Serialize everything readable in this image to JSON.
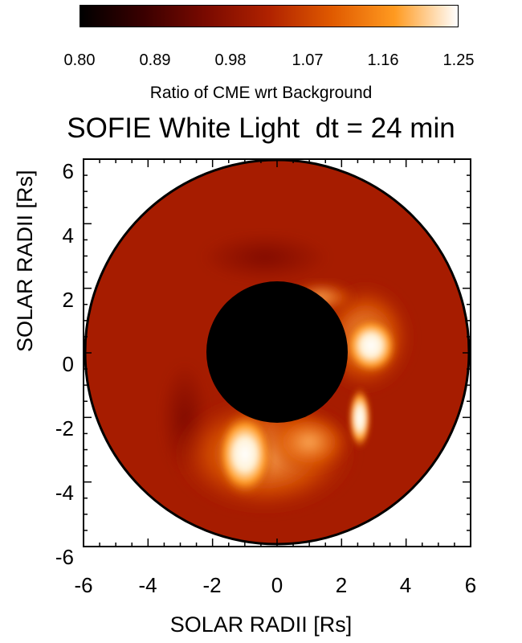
{
  "colorbar": {
    "ticks": [
      "0.80",
      "0.89",
      "0.98",
      "1.07",
      "1.16",
      "1.25"
    ],
    "label": "Ratio of CME wrt Background",
    "colors": [
      "#000000",
      "#3a0000",
      "#7a0a00",
      "#b02200",
      "#e05a00",
      "#ff9a20",
      "#ffffff"
    ]
  },
  "title": "SOFIE White Light  dt = 24 min",
  "axes": {
    "xlabel": "SOLAR RADII [Rs]",
    "ylabel": "SOLAR RADII [Rs]",
    "xticks": [
      "-6",
      "-4",
      "-2",
      "0",
      "2",
      "4",
      "6"
    ],
    "yticks": [
      "6",
      "4",
      "2",
      "0",
      "-2",
      "-4",
      "-6"
    ],
    "xlim": [
      -6,
      6
    ],
    "ylim": [
      -6,
      6
    ]
  },
  "image": {
    "background_color": "#a61c00",
    "occulter_color": "#000000",
    "occulter_radius_rs": 2.2,
    "outer_radius_rs": 6
  }
}
